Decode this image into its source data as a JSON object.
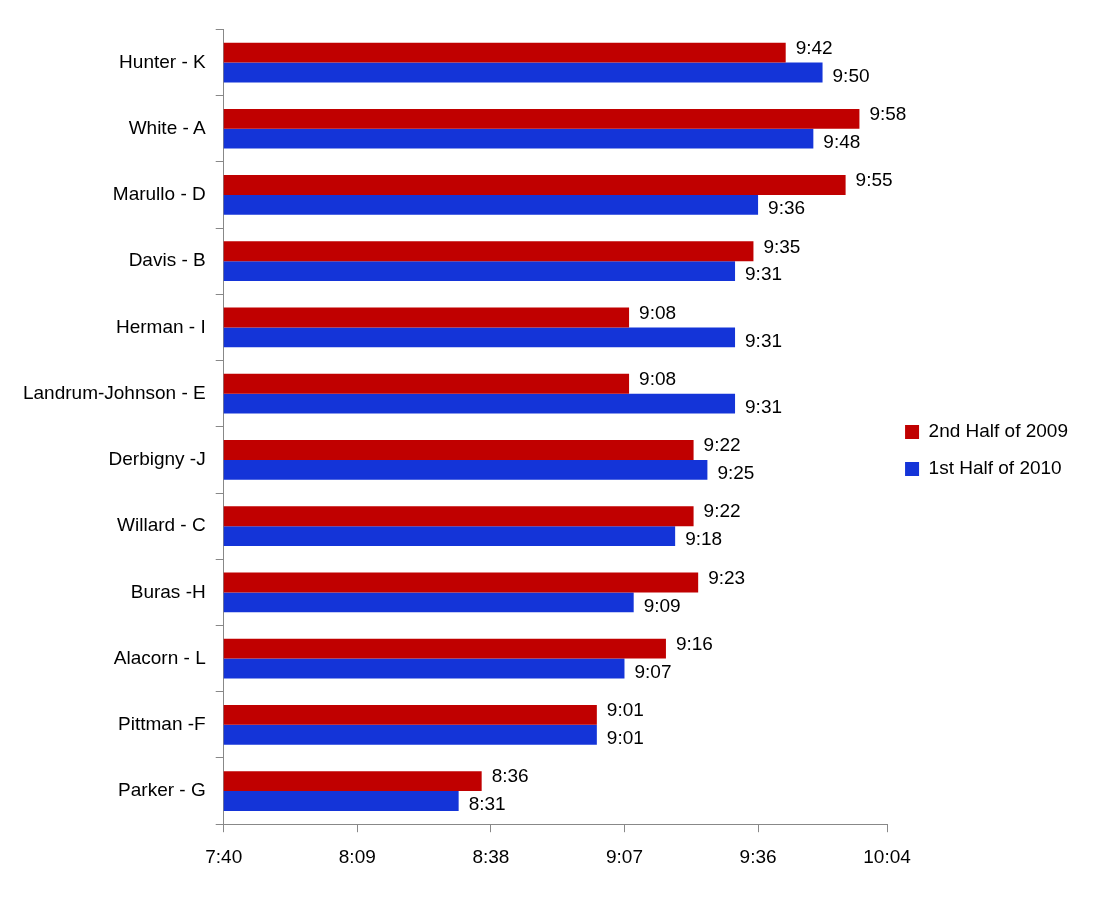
{
  "chart_data": {
    "type": "bar",
    "orientation": "horizontal",
    "categories": [
      "Hunter - K",
      "White - A",
      "Marullo - D",
      "Davis - B",
      "Herman - I",
      "Landrum-Johnson - E",
      "Derbigny -J",
      "Willard - C",
      "Buras -H",
      "Alacorn - L",
      "Pittman -F",
      "Parker - G"
    ],
    "series": [
      {
        "name": "2nd Half of 2009",
        "color": "#c00000",
        "values": [
          9.7,
          9.9667,
          9.9167,
          9.5833,
          9.1333,
          9.1333,
          9.3667,
          9.3667,
          9.3833,
          9.2667,
          9.0167,
          8.6
        ],
        "value_labels": [
          "9:42",
          "9:58",
          "9:55",
          "9:35",
          "9:08",
          "9:08",
          "9:22",
          "9:22",
          "9:23",
          "9:16",
          "9:01",
          "8:36"
        ]
      },
      {
        "name": "1st Half of 2010",
        "color": "#1434d8",
        "values": [
          9.8333,
          9.8,
          9.6,
          9.5167,
          9.5167,
          9.5167,
          9.4167,
          9.3,
          9.15,
          9.1167,
          9.0167,
          8.5167
        ],
        "value_labels": [
          "9:50",
          "9:48",
          "9:36",
          "9:31",
          "9:31",
          "9:31",
          "9:25",
          "9:18",
          "9:09",
          "9:07",
          "9:01",
          "8:31"
        ]
      }
    ],
    "xlim": [
      7.6667,
      10.0667
    ],
    "xticks": [
      {
        "value": 7.6667,
        "label": "7:40"
      },
      {
        "value": 8.15,
        "label": "8:09"
      },
      {
        "value": 8.6333,
        "label": "8:38"
      },
      {
        "value": 9.1167,
        "label": "9:07"
      },
      {
        "value": 9.6,
        "label": "9:36"
      },
      {
        "value": 10.0667,
        "label": "10:04"
      }
    ],
    "grid": false,
    "legend": "right"
  }
}
